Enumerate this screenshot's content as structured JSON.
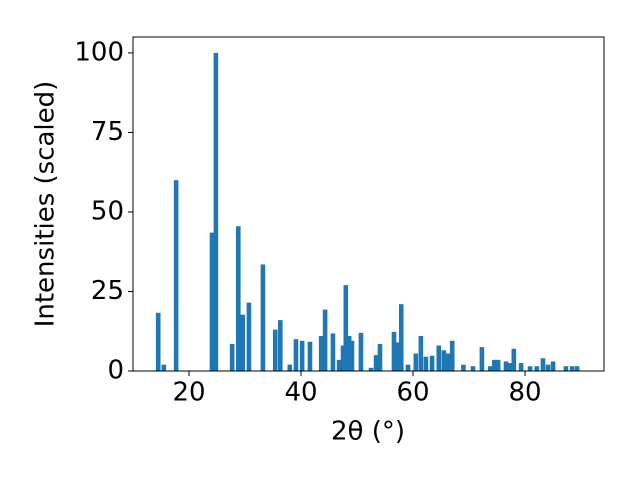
{
  "chart_data": {
    "type": "bar",
    "x_label": "2θ (°)",
    "y_label": "Intensities (scaled)",
    "color": "#1f77b4",
    "x": [
      14.5,
      15.5,
      17.7,
      24.1,
      24.8,
      27.7,
      28.8,
      29.6,
      30.7,
      33.2,
      35.4,
      36.3,
      38.0,
      39.1,
      40.2,
      41.6,
      43.6,
      44.3,
      45.7,
      46.8,
      47.5,
      48.0,
      48.6,
      49.1,
      50.7,
      52.5,
      53.4,
      54.1,
      56.6,
      57.3,
      57.9,
      59.1,
      60.5,
      61.4,
      62.3,
      63.4,
      64.6,
      65.5,
      66.3,
      67.0,
      69.0,
      70.7,
      72.3,
      73.8,
      74.5,
      75.2,
      76.6,
      77.3,
      78.0,
      79.3,
      80.9,
      82.1,
      83.2,
      84.1,
      85.0,
      87.3,
      88.4,
      89.3
    ],
    "values": [
      18.3,
      2,
      60,
      43.5,
      100,
      8.5,
      45.5,
      17.7,
      21.5,
      33.5,
      13,
      16,
      2,
      10,
      9.5,
      9.2,
      11,
      19.3,
      11.8,
      3.5,
      8,
      27,
      11,
      9.5,
      12,
      1,
      5,
      8.5,
      12.3,
      9,
      21,
      2,
      5.5,
      11,
      4.5,
      4.8,
      8,
      6.5,
      5.5,
      9.5,
      2,
      1.5,
      7.5,
      1.5,
      3.5,
      3.5,
      3,
      2.5,
      7,
      2.5,
      1.5,
      1.5,
      4,
      2,
      3,
      1.5,
      1.5,
      1.5
    ],
    "xlim": [
      10,
      94.1
    ],
    "ylim": [
      0,
      105
    ],
    "xticks": [
      20,
      40,
      60,
      80
    ],
    "yticks": [
      0,
      25,
      50,
      75,
      100
    ]
  }
}
